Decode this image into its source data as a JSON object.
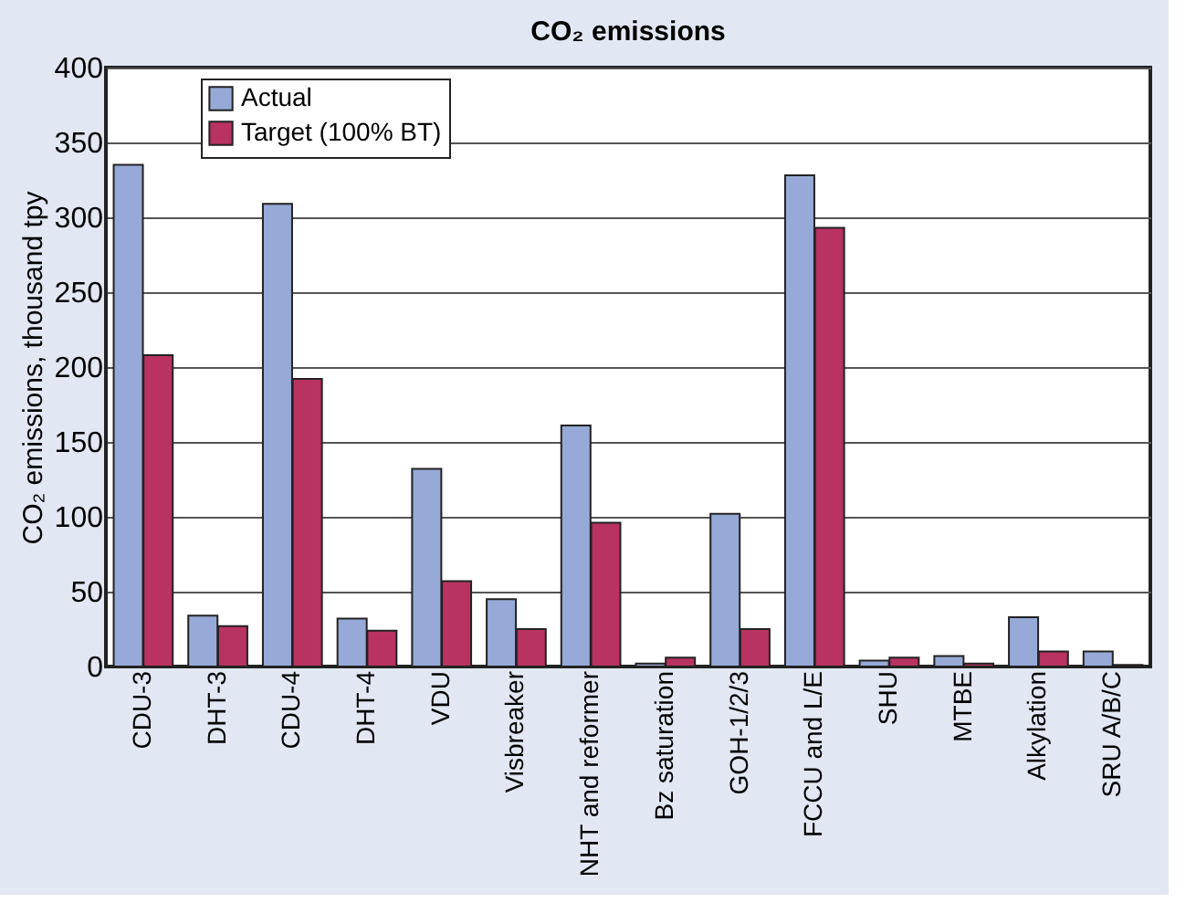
{
  "chart_data": {
    "type": "bar",
    "title": "CO₂ emissions",
    "ylabel": "CO₂ emissions, thousand tpy",
    "categories": [
      "CDU-3",
      "DHT-3",
      "CDU-4",
      "DHT-4",
      "VDU",
      "Visbreaker",
      "NHT and reformer",
      "Bz saturation",
      "GOH-1/2/3",
      "FCCU and L/E",
      "SHU",
      "MTBE",
      "Alkylation",
      "SRU A/B/C"
    ],
    "series": [
      {
        "name": "Actual",
        "color": "#97a9d6",
        "values": [
          335,
          34,
          309,
          32,
          132,
          45,
          161,
          2,
          102,
          328,
          4,
          7,
          33,
          10
        ]
      },
      {
        "name": "Target (100% BT)",
        "color": "#b83262",
        "values": [
          208,
          27,
          192,
          24,
          57,
          25,
          96,
          6,
          25,
          293,
          6,
          2,
          10,
          1
        ]
      }
    ],
    "ylim": [
      0,
      400
    ],
    "yticks": [
      0,
      50,
      100,
      150,
      200,
      250,
      300,
      350,
      400
    ],
    "grid": "y",
    "legend": "top left"
  }
}
